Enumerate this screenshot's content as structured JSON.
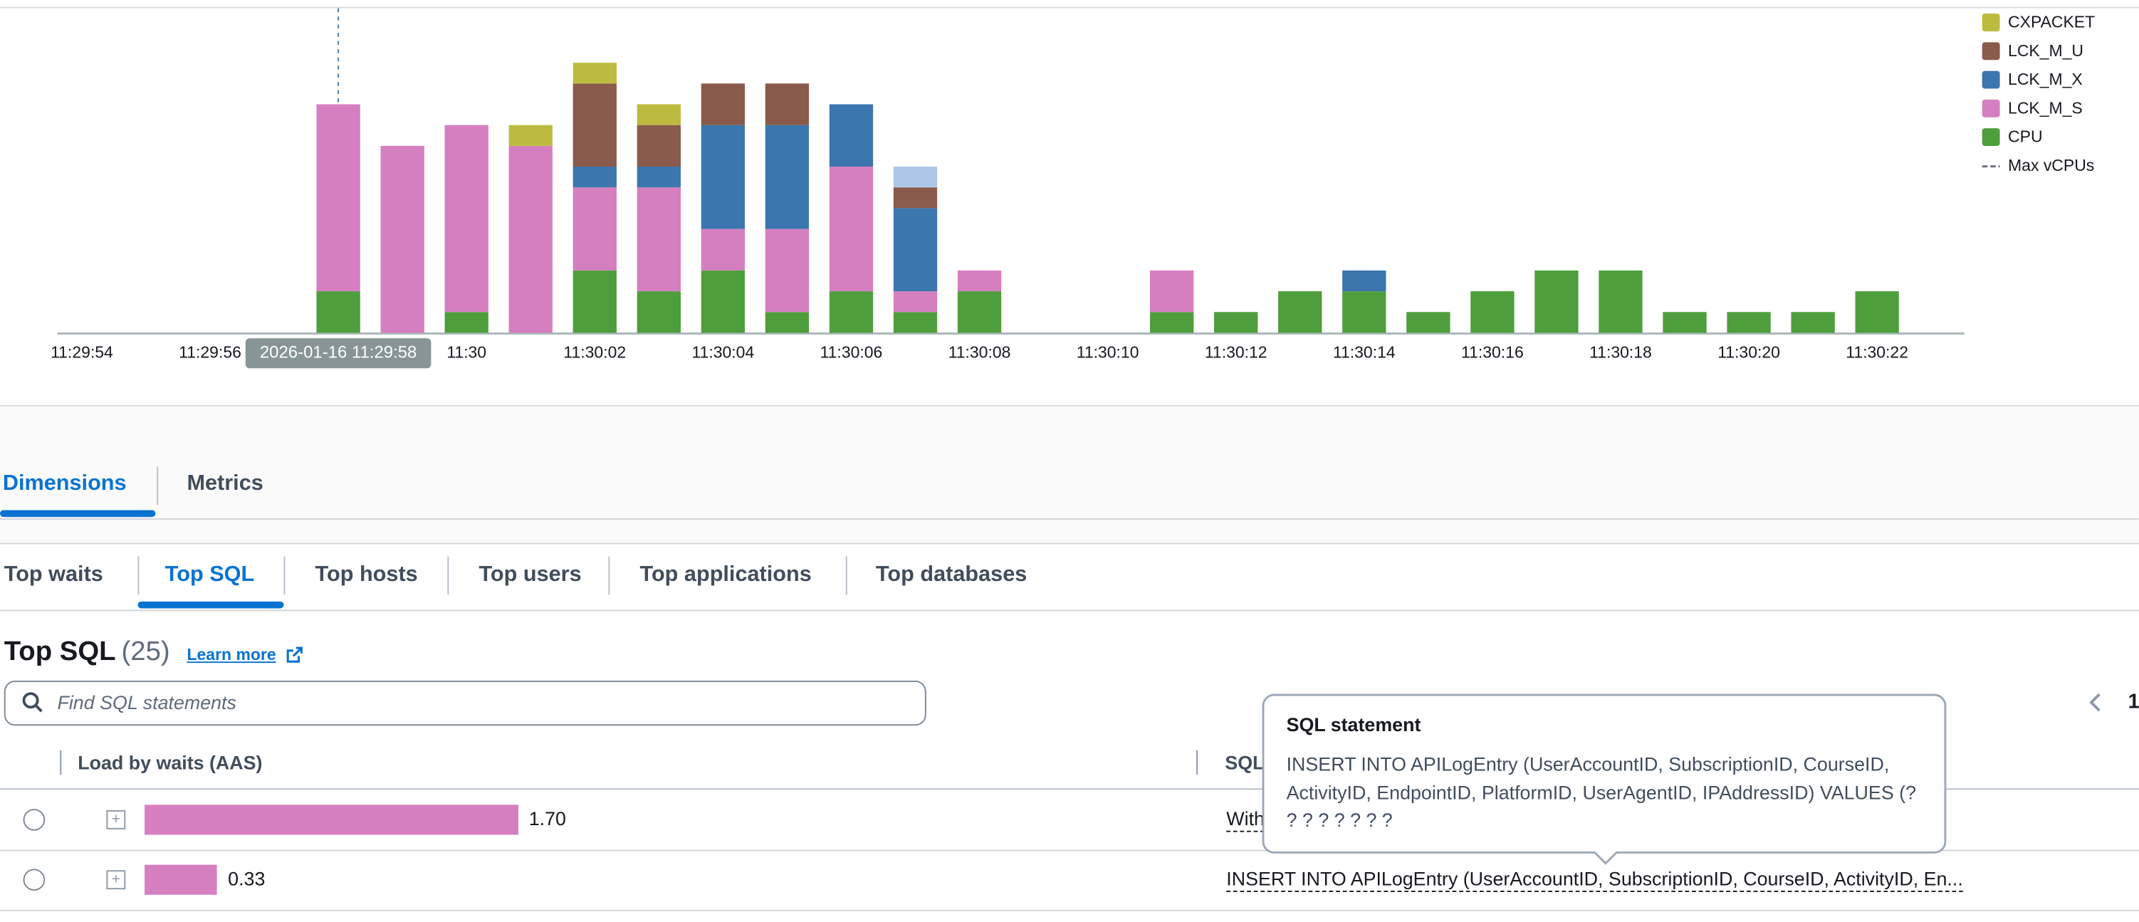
{
  "chart_data": {
    "type": "bar",
    "stacked": true,
    "categories": [
      "11:29:54",
      null,
      "11:29:56",
      null,
      null,
      null,
      "11:30",
      null,
      "11:30:02",
      null,
      "11:30:04",
      null,
      "11:30:06",
      null,
      "11:30:08",
      null,
      "11:30:10",
      null,
      "11:30:12",
      null,
      "11:30:14",
      null,
      "11:30:16",
      null,
      "11:30:18",
      null,
      "11:30:20",
      null,
      "11:30:22"
    ],
    "series": [
      {
        "name": "CPU",
        "color": "#4f9e3d",
        "values": [
          0,
          0,
          0,
          0,
          2,
          0,
          1,
          0,
          3,
          2,
          3,
          1,
          2,
          1,
          2,
          0,
          0,
          1,
          1,
          2,
          2,
          1,
          2,
          3,
          3,
          1,
          1,
          1,
          2
        ]
      },
      {
        "name": "LCK_M_S",
        "color": "#d67fc0",
        "values": [
          0,
          0,
          0,
          0,
          9,
          9,
          9,
          9,
          4,
          5,
          2,
          4,
          6,
          1,
          1,
          0,
          0,
          2,
          0,
          0,
          0,
          0,
          0,
          0,
          0,
          0,
          0,
          0,
          0
        ]
      },
      {
        "name": "LCK_M_X",
        "color": "#3b76ae",
        "values": [
          0,
          0,
          0,
          0,
          0,
          0,
          0,
          0,
          1,
          1,
          5,
          5,
          3,
          4,
          0,
          0,
          0,
          0,
          0,
          0,
          1,
          0,
          0,
          0,
          0,
          0,
          0,
          0,
          0
        ]
      },
      {
        "name": "LCK_M_U",
        "color": "#8a5a4c",
        "values": [
          0,
          0,
          0,
          0,
          0,
          0,
          0,
          0,
          4,
          2,
          2,
          2,
          0,
          1,
          0,
          0,
          0,
          0,
          0,
          0,
          0,
          0,
          0,
          0,
          0,
          0,
          0,
          0,
          0
        ]
      },
      {
        "color": "#aec7e8",
        "values": [
          0,
          0,
          0,
          0,
          0,
          0,
          0,
          0,
          0,
          0,
          0,
          0,
          0,
          1,
          0,
          0,
          0,
          0,
          0,
          0,
          0,
          0,
          0,
          0,
          0,
          0,
          0,
          0,
          0
        ]
      },
      {
        "name": "CXPACKET",
        "color": "#bdbb3f",
        "values": [
          0,
          0,
          0,
          0,
          0,
          0,
          0,
          1,
          1,
          1,
          0,
          0,
          0,
          0,
          0,
          0,
          0,
          0,
          0,
          0,
          0,
          0,
          0,
          0,
          0,
          0,
          0,
          0,
          0
        ]
      }
    ],
    "ylim": [
      0,
      13
    ],
    "legend": "top-right",
    "max_vcpus_legend": "Max vCPUs",
    "hover_label": "2026-01-16 11:29:58"
  },
  "tabs": [
    "Dimensions",
    "Metrics"
  ],
  "subtabs": [
    "Top waits",
    "Top SQL",
    "Top hosts",
    "Top users",
    "Top applications",
    "Top databases"
  ],
  "section": {
    "title": "Top SQL",
    "count": "(25)",
    "learn_more": "Learn more",
    "search_placeholder": "Find SQL statements",
    "page": "1"
  },
  "table": {
    "columns": [
      "Load by waits (AAS)",
      "SQL"
    ],
    "load_values": [
      1.7,
      0.33
    ],
    "load_value_labels": [
      "1.70",
      "0.33"
    ],
    "load_color": "#d67fc0",
    "sql": [
      "With",
      "INSERT INTO APILogEntry (UserAccountID, SubscriptionID, CourseID, ActivityID, En..."
    ]
  },
  "tooltip": {
    "title": "SQL statement",
    "body": "INSERT INTO APILogEntry (UserAccountID, SubscriptionID, CourseID, ActivityID, EndpointID, PlatformID, UserAgentID, IPAddressID) VALUES (? ? ? ? ? ? ? ?"
  }
}
